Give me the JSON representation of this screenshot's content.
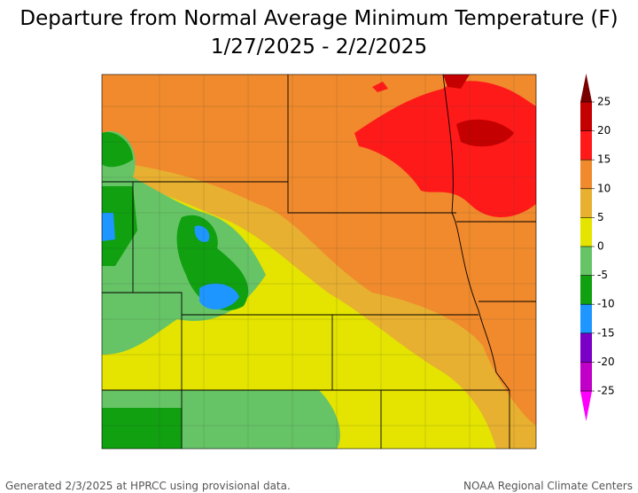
{
  "title": [
    "Departure from Normal Average Minimum Temperature (F)",
    "1/27/2025 - 2/2/2025"
  ],
  "legend": {
    "ticks": [
      25,
      20,
      15,
      10,
      5,
      0,
      -5,
      -10,
      -15,
      -20,
      -25
    ],
    "colors": [
      "#7a0000",
      "#c40000",
      "#ff1a1a",
      "#f08a2c",
      "#e8b030",
      "#e4e400",
      "#66c466",
      "#10a010",
      "#1e96ff",
      "#7a00c8",
      "#c000c8",
      "#ff00ff"
    ]
  },
  "footer": {
    "left": "Generated 2/3/2025 at HPRCC using provisional data.",
    "right": "NOAA Regional Climate Centers"
  }
}
